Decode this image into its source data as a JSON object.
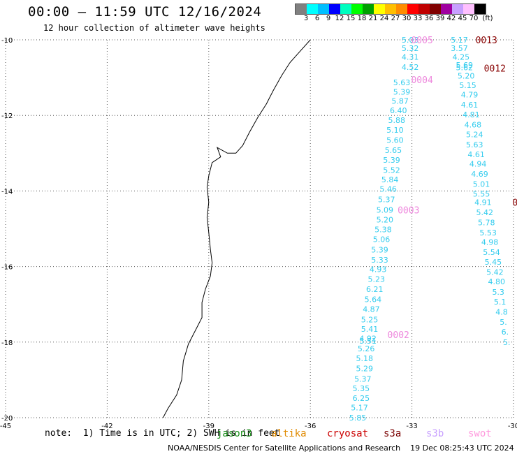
{
  "header": {
    "title": "00:00 – 11:59 UTC 12/16/2024",
    "subtitle": "12 hour collection of altimeter wave heights"
  },
  "legend": {
    "unit": "(ft)",
    "ticks": [
      "3",
      "6",
      "9",
      "12",
      "15",
      "18",
      "21",
      "24",
      "27",
      "30",
      "33",
      "36",
      "39",
      "42",
      "45",
      "70"
    ],
    "colors": [
      "#808080",
      "#00ffff",
      "#00bfff",
      "#0000ff",
      "#00ffbf",
      "#00ff00",
      "#00a000",
      "#ffff00",
      "#ffbf00",
      "#ff8c00",
      "#ff0000",
      "#c00000",
      "#800000",
      "#a000a0",
      "#c8a0ff",
      "#ffc0ff",
      "#000000"
    ]
  },
  "chart_data": {
    "type": "scatter",
    "title": "00:00 – 11:59 UTC 12/16/2024",
    "subtitle": "12 hour collection of altimeter wave heights",
    "xlim": [
      -45,
      -30
    ],
    "ylim": [
      -20,
      -10
    ],
    "x_ticks": [
      "-45",
      "-42",
      "-39",
      "-36",
      "-33",
      "-30"
    ],
    "y_ticks": [
      "-10",
      "-12",
      "-14",
      "-16",
      "-18",
      "-20"
    ],
    "grid": true,
    "value_color": "#33ccee",
    "track_colors": {
      "0002": "#ee88dd",
      "0003": "#ee88dd",
      "0004": "#ee88dd",
      "0005": "#ee88dd",
      "0012": "#880000",
      "0013": "#880000",
      "cut": "#880000"
    },
    "tracks": [
      {
        "label": "0005",
        "x": -32.7,
        "y": -10.0
      },
      {
        "label": "0004",
        "x": -32.7,
        "y": -11.05
      },
      {
        "label": "0003",
        "x": -33.1,
        "y": -14.5
      },
      {
        "label": "0002",
        "x": -33.4,
        "y": -17.8
      },
      {
        "label": "0013",
        "x": -30.8,
        "y": -10.0
      },
      {
        "label": "0012",
        "x": -30.55,
        "y": -10.75
      },
      {
        "label": "0",
        "x": -29.95,
        "y": -14.3
      }
    ],
    "series": [
      {
        "values": [
          {
            "x": -33.05,
            "y": -10.0,
            "v": "5.03"
          },
          {
            "x": -33.05,
            "y": -10.22,
            "v": "5.32"
          },
          {
            "x": -33.05,
            "y": -10.45,
            "v": "4.31"
          },
          {
            "x": -33.05,
            "y": -10.72,
            "v": "4.52"
          },
          {
            "x": -33.3,
            "y": -11.13,
            "v": "5.63"
          },
          {
            "x": -33.3,
            "y": -11.38,
            "v": "5.39"
          },
          {
            "x": -33.35,
            "y": -11.62,
            "v": "5.87"
          },
          {
            "x": -33.4,
            "y": -11.87,
            "v": "6.40"
          },
          {
            "x": -33.45,
            "y": -12.13,
            "v": "5.88"
          },
          {
            "x": -33.5,
            "y": -12.38,
            "v": "5.10"
          },
          {
            "x": -33.5,
            "y": -12.65,
            "v": "5.60"
          },
          {
            "x": -33.55,
            "y": -12.92,
            "v": "5.65"
          },
          {
            "x": -33.6,
            "y": -13.18,
            "v": "5.39"
          },
          {
            "x": -33.6,
            "y": -13.45,
            "v": "5.52"
          },
          {
            "x": -33.65,
            "y": -13.7,
            "v": "5.84"
          },
          {
            "x": -33.7,
            "y": -13.95,
            "v": "5.46"
          },
          {
            "x": -33.75,
            "y": -14.22,
            "v": "5.37"
          },
          {
            "x": -33.8,
            "y": -14.5,
            "v": "5.09"
          },
          {
            "x": -33.8,
            "y": -14.76,
            "v": "5.20"
          },
          {
            "x": -33.85,
            "y": -15.02,
            "v": "5.38"
          },
          {
            "x": -33.9,
            "y": -15.28,
            "v": "5.06"
          },
          {
            "x": -33.95,
            "y": -15.55,
            "v": "5.39"
          },
          {
            "x": -33.95,
            "y": -15.82,
            "v": "5.33"
          },
          {
            "x": -34.0,
            "y": -16.07,
            "v": "4.93"
          },
          {
            "x": -34.05,
            "y": -16.33,
            "v": "5.23"
          },
          {
            "x": -34.1,
            "y": -16.6,
            "v": "6.21"
          },
          {
            "x": -34.15,
            "y": -16.87,
            "v": "5.64"
          },
          {
            "x": -34.2,
            "y": -17.13,
            "v": "4.87"
          },
          {
            "x": -34.25,
            "y": -17.4,
            "v": "5.25"
          },
          {
            "x": -34.25,
            "y": -17.65,
            "v": "5.41"
          },
          {
            "x": -34.3,
            "y": -17.9,
            "v": "4.92"
          },
          {
            "x": -34.3,
            "y": -17.97,
            "v": "5.51"
          },
          {
            "x": -34.35,
            "y": -18.17,
            "v": "5.26"
          },
          {
            "x": -34.4,
            "y": -18.43,
            "v": "5.18"
          },
          {
            "x": -34.4,
            "y": -18.7,
            "v": "5.29"
          },
          {
            "x": -34.45,
            "y": -18.97,
            "v": "5.37"
          },
          {
            "x": -34.5,
            "y": -19.22,
            "v": "5.35"
          },
          {
            "x": -34.5,
            "y": -19.48,
            "v": "6.25"
          },
          {
            "x": -34.55,
            "y": -19.73,
            "v": "5.17"
          },
          {
            "x": -34.6,
            "y": -20.0,
            "v": "5.85"
          }
        ]
      },
      {
        "values": [
          {
            "x": -31.6,
            "y": -10.0,
            "v": "5.17"
          },
          {
            "x": -31.6,
            "y": -10.22,
            "v": "3.57"
          },
          {
            "x": -31.55,
            "y": -10.45,
            "v": "4.25"
          },
          {
            "x": -31.45,
            "y": -10.67,
            "v": "5.69"
          },
          {
            "x": -31.45,
            "y": -10.73,
            "v": "5.62"
          },
          {
            "x": -31.4,
            "y": -10.95,
            "v": "5.20"
          },
          {
            "x": -31.35,
            "y": -11.2,
            "v": "5.15"
          },
          {
            "x": -31.3,
            "y": -11.45,
            "v": "4.79"
          },
          {
            "x": -31.3,
            "y": -11.72,
            "v": "4.61"
          },
          {
            "x": -31.25,
            "y": -11.98,
            "v": "4.81"
          },
          {
            "x": -31.2,
            "y": -12.25,
            "v": "4.68"
          },
          {
            "x": -31.15,
            "y": -12.5,
            "v": "5.24"
          },
          {
            "x": -31.15,
            "y": -12.77,
            "v": "5.63"
          },
          {
            "x": -31.1,
            "y": -13.03,
            "v": "4.61"
          },
          {
            "x": -31.05,
            "y": -13.28,
            "v": "4.94"
          },
          {
            "x": -31.0,
            "y": -13.55,
            "v": "4.69"
          },
          {
            "x": -30.95,
            "y": -13.82,
            "v": "5.01"
          },
          {
            "x": -30.95,
            "y": -14.08,
            "v": "5.55"
          },
          {
            "x": -30.9,
            "y": -14.3,
            "v": "4.91"
          },
          {
            "x": -30.85,
            "y": -14.57,
            "v": "5.42"
          },
          {
            "x": -30.8,
            "y": -14.83,
            "v": "5.78"
          },
          {
            "x": -30.75,
            "y": -15.1,
            "v": "5.53"
          },
          {
            "x": -30.7,
            "y": -15.35,
            "v": "4.98"
          },
          {
            "x": -30.65,
            "y": -15.62,
            "v": "5.54"
          },
          {
            "x": -30.6,
            "y": -15.88,
            "v": "5.45"
          },
          {
            "x": -30.55,
            "y": -16.15,
            "v": "5.42"
          },
          {
            "x": -30.5,
            "y": -16.4,
            "v": "4.80"
          },
          {
            "x": -30.45,
            "y": -16.67,
            "v": "5.3"
          },
          {
            "x": -30.4,
            "y": -16.93,
            "v": "5.1"
          },
          {
            "x": -30.35,
            "y": -17.2,
            "v": "4.8"
          },
          {
            "x": -30.3,
            "y": -17.47,
            "v": "5."
          },
          {
            "x": -30.25,
            "y": -17.73,
            "v": "6."
          },
          {
            "x": -30.2,
            "y": -18.0,
            "v": "5."
          }
        ]
      }
    ],
    "coastline": [
      [
        -36.0,
        -10.0
      ],
      [
        -36.3,
        -10.3
      ],
      [
        -36.6,
        -10.6
      ],
      [
        -36.85,
        -10.95
      ],
      [
        -37.1,
        -11.35
      ],
      [
        -37.3,
        -11.7
      ],
      [
        -37.55,
        -12.05
      ],
      [
        -37.8,
        -12.45
      ],
      [
        -38.0,
        -12.8
      ],
      [
        -38.2,
        -13.0
      ],
      [
        -38.45,
        -13.0
      ],
      [
        -38.75,
        -12.85
      ],
      [
        -38.65,
        -13.1
      ],
      [
        -38.9,
        -13.25
      ],
      [
        -39.0,
        -13.6
      ],
      [
        -39.05,
        -13.9
      ],
      [
        -39.0,
        -14.3
      ],
      [
        -39.05,
        -14.7
      ],
      [
        -39.0,
        -15.1
      ],
      [
        -38.95,
        -15.55
      ],
      [
        -38.9,
        -15.9
      ],
      [
        -38.95,
        -16.25
      ],
      [
        -39.1,
        -16.6
      ],
      [
        -39.2,
        -16.95
      ],
      [
        -39.2,
        -17.35
      ],
      [
        -39.4,
        -17.7
      ],
      [
        -39.6,
        -18.05
      ],
      [
        -39.75,
        -18.5
      ],
      [
        -39.8,
        -19.0
      ],
      [
        -39.95,
        -19.4
      ],
      [
        -40.2,
        -19.75
      ],
      [
        -40.35,
        -20.0
      ]
    ]
  },
  "footer": {
    "note": "note:  1) Time is in UTC; 2) SWH is in feet",
    "satellites": [
      {
        "name": "jason3",
        "color": "#1a8f1a"
      },
      {
        "name": "altika",
        "color": "#e08a00"
      },
      {
        "name": "cryosat",
        "color": "#cc0000"
      },
      {
        "name": "s3a",
        "color": "#7a0000"
      },
      {
        "name": "s3b",
        "color": "#c8a0ff"
      },
      {
        "name": "swot",
        "color": "#ff99dd"
      }
    ],
    "credit": "NOAA/NESDIS Center for Satellite Applications and Research    19 Dec 08:25:43 UTC 2024"
  }
}
